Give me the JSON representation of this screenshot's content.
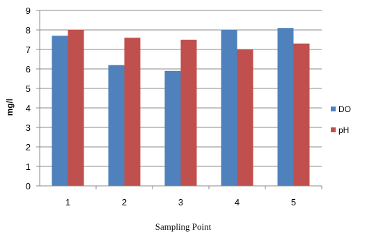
{
  "chart_data": {
    "type": "bar",
    "categories": [
      "1",
      "2",
      "3",
      "4",
      "5"
    ],
    "series": [
      {
        "name": "DO",
        "values": [
          7.7,
          6.2,
          5.9,
          8.0,
          8.1
        ]
      },
      {
        "name": "pH",
        "values": [
          8.0,
          7.6,
          7.5,
          7.0,
          7.3
        ]
      }
    ],
    "xlabel": "Sampling Point",
    "ylabel": "mg/l",
    "ylim": [
      0,
      9
    ],
    "yticks": [
      0,
      1,
      2,
      3,
      4,
      5,
      6,
      7,
      8,
      9
    ],
    "grid": true,
    "legend": "right",
    "colors": {
      "DO": "#4F81BD",
      "pH": "#C0504D",
      "grid": "#888888",
      "axis": "#888888"
    }
  }
}
